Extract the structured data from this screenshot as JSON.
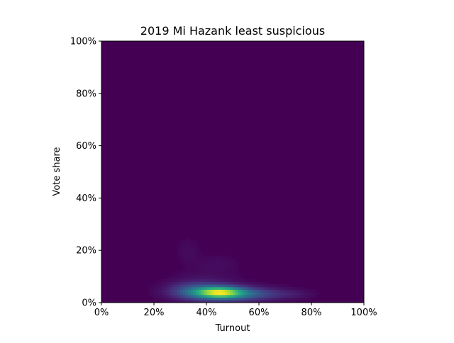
{
  "chart_data": {
    "type": "heatmap",
    "title": "2019 Mi Hazank least suspicious",
    "xlabel": "Turnout",
    "ylabel": "Vote share",
    "xlim": [
      0,
      100
    ],
    "ylim": [
      0,
      100
    ],
    "x_ticks": [
      {
        "value": 0,
        "label": "0%"
      },
      {
        "value": 20,
        "label": "20%"
      },
      {
        "value": 40,
        "label": "40%"
      },
      {
        "value": 60,
        "label": "60%"
      },
      {
        "value": 80,
        "label": "80%"
      },
      {
        "value": 100,
        "label": "100%"
      }
    ],
    "y_ticks": [
      {
        "value": 0,
        "label": "0%"
      },
      {
        "value": 20,
        "label": "20%"
      },
      {
        "value": 40,
        "label": "40%"
      },
      {
        "value": 60,
        "label": "60%"
      },
      {
        "value": 80,
        "label": "80%"
      },
      {
        "value": 100,
        "label": "100%"
      }
    ],
    "grid": false,
    "colormap": "viridis",
    "colors": {
      "background": "#440154",
      "stops": [
        "#440154",
        "#472c7a",
        "#3b518b",
        "#2c718e",
        "#21908d",
        "#27ad81",
        "#5cc863",
        "#aadc32",
        "#fde725"
      ]
    },
    "density_blobs": [
      {
        "x": 45,
        "y": 4,
        "sx": 6,
        "sy": 1.4,
        "intensity": 1.0
      },
      {
        "x": 41,
        "y": 4,
        "sx": 9,
        "sy": 2.2,
        "intensity": 0.45
      },
      {
        "x": 52,
        "y": 3.3,
        "sx": 9,
        "sy": 1.8,
        "intensity": 0.42
      },
      {
        "x": 34,
        "y": 5,
        "sx": 6,
        "sy": 2.2,
        "intensity": 0.2
      },
      {
        "x": 64,
        "y": 3.5,
        "sx": 8,
        "sy": 1.5,
        "intensity": 0.12
      },
      {
        "x": 74,
        "y": 3.2,
        "sx": 5,
        "sy": 1.2,
        "intensity": 0.06
      },
      {
        "x": 33,
        "y": 20,
        "sx": 3,
        "sy": 3.5,
        "intensity": 0.05
      },
      {
        "x": 44,
        "y": 15,
        "sx": 6,
        "sy": 2.5,
        "intensity": 0.05
      },
      {
        "x": 40,
        "y": 9,
        "sx": 8,
        "sy": 2.5,
        "intensity": 0.06
      }
    ]
  }
}
